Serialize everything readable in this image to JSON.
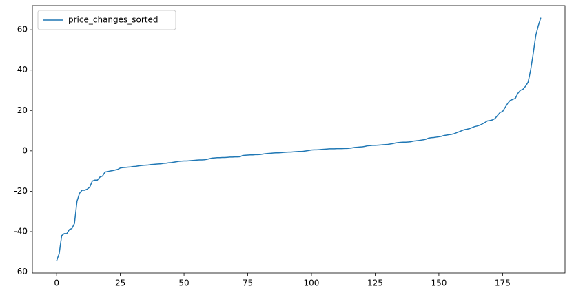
{
  "chart_data": {
    "type": "line",
    "x": [
      0,
      1,
      2,
      3,
      4,
      5,
      6,
      7,
      8,
      9,
      10,
      11,
      12,
      13,
      14,
      15,
      16,
      17,
      18,
      19,
      20,
      21,
      22,
      23,
      24,
      25,
      26,
      27,
      28,
      29,
      30,
      31,
      32,
      33,
      34,
      35,
      36,
      37,
      38,
      39,
      40,
      41,
      42,
      43,
      44,
      45,
      46,
      47,
      48,
      49,
      50,
      51,
      52,
      53,
      54,
      55,
      56,
      57,
      58,
      59,
      60,
      61,
      62,
      63,
      64,
      65,
      66,
      67,
      68,
      69,
      70,
      71,
      72,
      73,
      74,
      75,
      76,
      77,
      78,
      79,
      80,
      81,
      82,
      83,
      84,
      85,
      86,
      87,
      88,
      89,
      90,
      91,
      92,
      93,
      94,
      95,
      96,
      97,
      98,
      99,
      100,
      101,
      102,
      103,
      104,
      105,
      106,
      107,
      108,
      109,
      110,
      111,
      112,
      113,
      114,
      115,
      116,
      117,
      118,
      119,
      120,
      121,
      122,
      123,
      124,
      125,
      126,
      127,
      128,
      129,
      130,
      131,
      132,
      133,
      134,
      135,
      136,
      137,
      138,
      139,
      140,
      141,
      142,
      143,
      144,
      145,
      146,
      147,
      148,
      149,
      150,
      151,
      152,
      153,
      154,
      155,
      156,
      157,
      158,
      159,
      160,
      161,
      162,
      163,
      164,
      165,
      166,
      167,
      168,
      169,
      170,
      171,
      172,
      173,
      174,
      175,
      176,
      177,
      178,
      179,
      180,
      181,
      182,
      183,
      184,
      185,
      186,
      187,
      188,
      189,
      190
    ],
    "series": [
      {
        "name": "price_changes_sorted",
        "color": "#1f77b4",
        "values": [
          -54.5,
          -51,
          -42,
          -41,
          -41,
          -39,
          -38.5,
          -36,
          -25,
          -21,
          -19.5,
          -19.5,
          -19,
          -18,
          -15,
          -14.5,
          -14.5,
          -13,
          -12.5,
          -10.5,
          -10.3,
          -10,
          -9.8,
          -9.5,
          -9.2,
          -8.5,
          -8.3,
          -8.2,
          -8.1,
          -8.0,
          -7.8,
          -7.7,
          -7.5,
          -7.3,
          -7.2,
          -7.1,
          -7.0,
          -6.8,
          -6.7,
          -6.6,
          -6.5,
          -6.4,
          -6.2,
          -6.1,
          -5.9,
          -5.8,
          -5.6,
          -5.4,
          -5.2,
          -5.1,
          -5.0,
          -5.0,
          -4.9,
          -4.8,
          -4.7,
          -4.6,
          -4.5,
          -4.5,
          -4.4,
          -4.2,
          -3.9,
          -3.6,
          -3.5,
          -3.4,
          -3.4,
          -3.3,
          -3.3,
          -3.2,
          -3.1,
          -3.1,
          -3.0,
          -3.0,
          -2.9,
          -2.3,
          -2.2,
          -2.1,
          -2.0,
          -2.0,
          -1.9,
          -1.9,
          -1.8,
          -1.6,
          -1.4,
          -1.3,
          -1.2,
          -1.1,
          -1.0,
          -1.0,
          -0.9,
          -0.8,
          -0.7,
          -0.6,
          -0.6,
          -0.5,
          -0.4,
          -0.3,
          -0.3,
          -0.2,
          0.0,
          0.2,
          0.4,
          0.5,
          0.5,
          0.6,
          0.7,
          0.8,
          0.9,
          1.0,
          1.0,
          1.0,
          1.1,
          1.1,
          1.1,
          1.2,
          1.2,
          1.3,
          1.5,
          1.7,
          1.8,
          1.9,
          2.0,
          2.2,
          2.5,
          2.6,
          2.7,
          2.7,
          2.8,
          2.9,
          3.0,
          3.1,
          3.2,
          3.4,
          3.6,
          3.9,
          4.1,
          4.2,
          4.3,
          4.3,
          4.4,
          4.5,
          4.8,
          5.0,
          5.1,
          5.3,
          5.5,
          5.8,
          6.3,
          6.5,
          6.6,
          6.8,
          7.0,
          7.2,
          7.6,
          7.8,
          8.0,
          8.2,
          8.5,
          9.0,
          9.5,
          10.0,
          10.5,
          10.7,
          11.0,
          11.5,
          12.0,
          12.3,
          12.7,
          13.3,
          14.0,
          14.8,
          15.0,
          15.3,
          16.0,
          17.5,
          19.0,
          19.5,
          21.5,
          23.5,
          25.0,
          25.5,
          26.0,
          28.5,
          30.0,
          30.5,
          32.0,
          34.0,
          40.0,
          48.0,
          57.0,
          62.0,
          66.0
        ]
      }
    ],
    "xlim": [
      -9.5,
      199.5
    ],
    "xticks": [
      0,
      25,
      50,
      75,
      100,
      125,
      150,
      175
    ],
    "ylim": [
      -60.5,
      72
    ],
    "yticks": [
      -60,
      -40,
      -20,
      0,
      20,
      40,
      60
    ],
    "grid": false,
    "legend": "upper left"
  }
}
